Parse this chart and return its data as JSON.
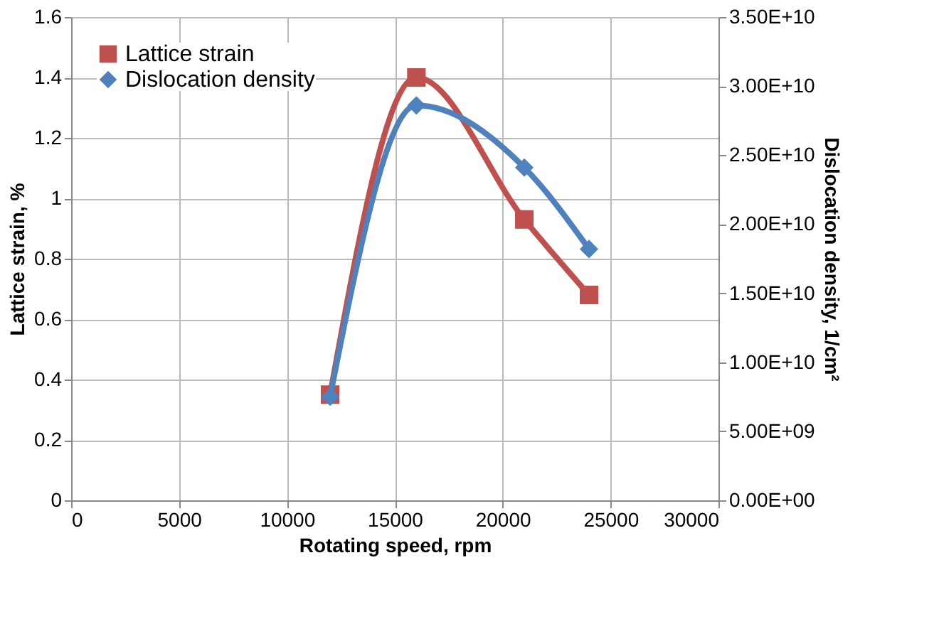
{
  "chart_data": {
    "type": "line",
    "xlabel": "Rotating speed, rpm",
    "ylabel": "Lattice strain, %",
    "y2label": "Dislocation density, 1/cm²",
    "x": [
      12000,
      16000,
      21000,
      24000
    ],
    "series": [
      {
        "name": "Lattice strain",
        "color": "#c0504d",
        "marker": "square",
        "values": [
          0.35,
          1.4,
          0.93,
          0.68
        ]
      },
      {
        "name": "Dislocation density",
        "color": "#4f81bd",
        "marker": "diamond",
        "axis": "y2",
        "values": [
          7500000000.0,
          28600000000.0,
          24100000000.0,
          18200000000.0
        ]
      }
    ],
    "xlim": [
      0,
      30000
    ],
    "xticks": [
      0,
      5000,
      10000,
      15000,
      20000,
      25000,
      30000
    ],
    "ylim": [
      0,
      1.6
    ],
    "yticks": [
      0,
      0.2,
      0.4,
      0.6,
      0.8,
      1,
      1.2,
      1.4,
      1.6
    ],
    "y2lim": [
      0,
      35000000000.0
    ],
    "y2ticks": [
      {
        "value": 0,
        "label": "0.00E+00"
      },
      {
        "value": 5000000000.0,
        "label": "5.00E+09"
      },
      {
        "value": 10000000000.0,
        "label": "1.00E+10"
      },
      {
        "value": 15000000000.0,
        "label": "1.50E+10"
      },
      {
        "value": 20000000000.0,
        "label": "2.00E+10"
      },
      {
        "value": 25000000000.0,
        "label": "2.50E+10"
      },
      {
        "value": 30000000000.0,
        "label": "3.00E+10"
      },
      {
        "value": 35000000000.0,
        "label": "3.50E+10"
      }
    ],
    "grid": true,
    "legend": "top left",
    "line_style": "solid"
  }
}
